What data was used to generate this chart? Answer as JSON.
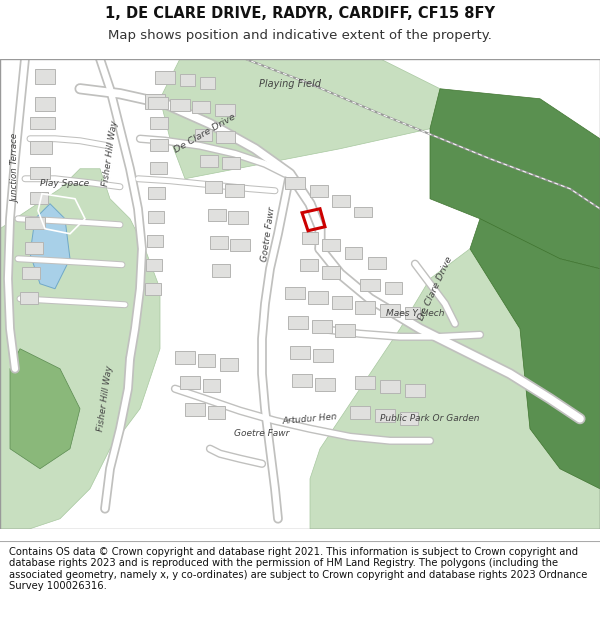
{
  "title_line1": "1, DE CLARE DRIVE, RADYR, CARDIFF, CF15 8FY",
  "title_line2": "Map shows position and indicative extent of the property.",
  "footer_text": "Contains OS data © Crown copyright and database right 2021. This information is subject to Crown copyright and database rights 2023 and is reproduced with the permission of HM Land Registry. The polygons (including the associated geometry, namely x, y co-ordinates) are subject to Crown copyright and database rights 2023 Ordnance Survey 100026316.",
  "title_fontsize": 10.5,
  "subtitle_fontsize": 9.5,
  "footer_fontsize": 7.2,
  "fig_width": 6.0,
  "fig_height": 6.25,
  "map_bg": "#f7f7f5",
  "road_color": "#ffffff",
  "road_outline": "#c8c8c8",
  "building_fill": "#e0e0de",
  "building_edge": "#b5b5b3",
  "light_green": "#c8dfc0",
  "mid_green": "#8ab87a",
  "dark_green": "#5a9050",
  "blue_water": "#a8d0e8",
  "highlight_color": "#cc0000",
  "footer_bg": "#ffffff",
  "title_bg": "#ffffff",
  "border_color": "#999999"
}
